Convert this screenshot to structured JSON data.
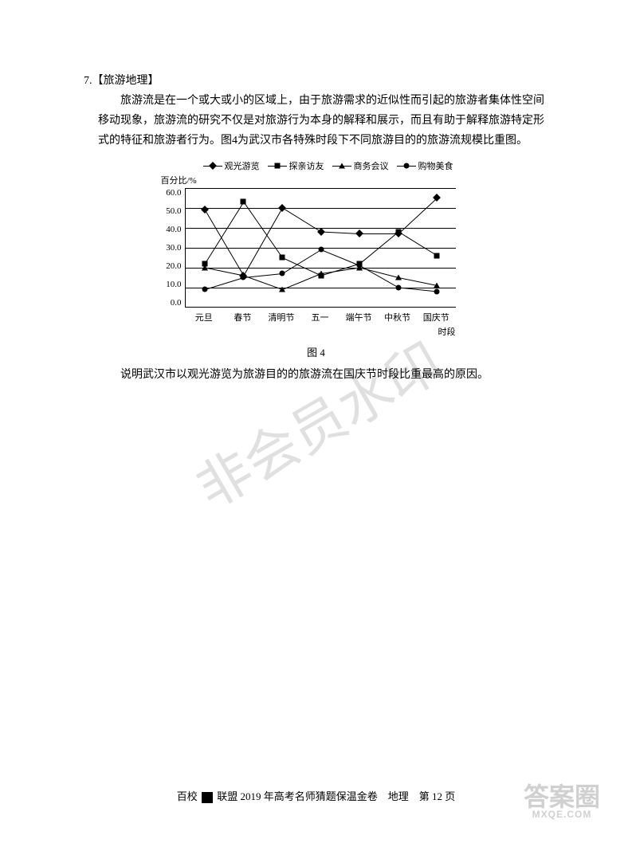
{
  "question": {
    "number": "7.",
    "tag": "【旅游地理】",
    "paragraph": "旅游流是在一个或大或小的区域上，由于旅游需求的近似性而引起的旅游者集体性空间移动现象，旅游流的研究不仅是对旅游行为本身的解释和展示，而且有助于解释旅游特定形式的特征和旅游者行为。图4为武汉市各特殊时段下不同旅游目的的旅游流规模比重图。",
    "prompt": "说明武汉市以观光游览为旅游目的的旅游流在国庆节时段比重最高的原因。"
  },
  "chart": {
    "type": "line",
    "y_label": "百分比/%",
    "y_ticks": [
      "60.0",
      "50.0",
      "40.0",
      "30.0",
      "20.0",
      "10.0",
      "0.0"
    ],
    "ylim": [
      0,
      60
    ],
    "x_categories": [
      "元旦",
      "春节",
      "清明节",
      "五一",
      "端午节",
      "中秋节",
      "国庆节"
    ],
    "x_sublabel": "时段",
    "figure_label": "图 4",
    "grid_color": "#000000",
    "background_color": "#ffffff",
    "line_color": "#000000",
    "label_fontsize": 11,
    "series": [
      {
        "name": "观光游览",
        "marker": "diamond",
        "values": [
          49,
          16,
          50,
          38,
          37,
          37,
          55
        ]
      },
      {
        "name": "探亲访友",
        "marker": "square",
        "values": [
          22,
          53,
          25,
          16,
          22,
          38,
          26
        ]
      },
      {
        "name": "商务会议",
        "marker": "triangle",
        "values": [
          20,
          16,
          9,
          17,
          20,
          15,
          11
        ]
      },
      {
        "name": "购物美食",
        "marker": "circle",
        "values": [
          9,
          15,
          17,
          29,
          21,
          10,
          8
        ]
      }
    ]
  },
  "watermark": "非会员水印",
  "footer": {
    "text_left": "百校",
    "text_mid": "联盟",
    "text_right": "2019 年高考名师猜题保温金卷　地理　第 12 页"
  },
  "corner": {
    "main": "答案圈",
    "sub": "MXQE.COM"
  }
}
